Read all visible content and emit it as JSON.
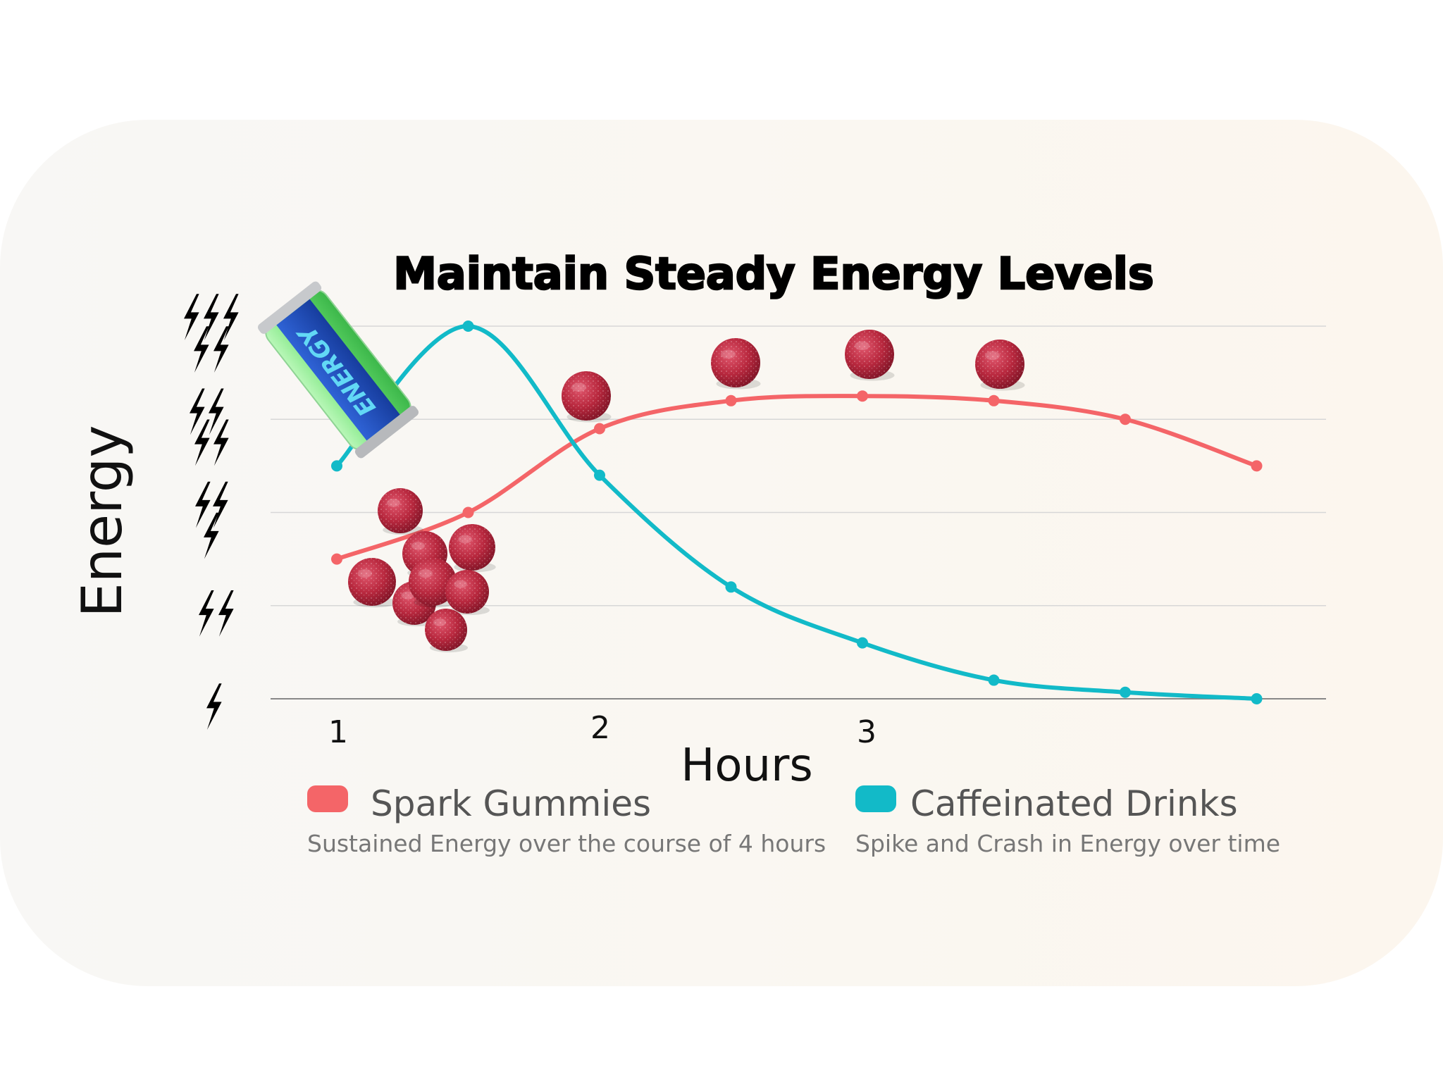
{
  "chart_data": {
    "type": "line",
    "title": "Maintain Steady Energy Levels",
    "xlabel": "Hours",
    "ylabel": "Energy",
    "x_tick_labels": [
      {
        "label": "1",
        "x": 1
      },
      {
        "label": "2",
        "x": 2
      },
      {
        "label": "3",
        "x": 3
      }
    ],
    "y_tick_labels": [
      1,
      2,
      3,
      4,
      5
    ],
    "y_tick_icon": "lightning-bolt-icon",
    "xlim": [
      0.75,
      4.8
    ],
    "ylim": [
      1,
      5
    ],
    "grid": true,
    "series": [
      {
        "name": "Spark Gummies",
        "description": "Sustained Energy over the course of 4 hours",
        "color": "#f46568",
        "x": [
          1,
          1.5,
          2,
          2.5,
          3,
          3.5,
          4,
          4.5
        ],
        "values": [
          2.5,
          3.0,
          3.9,
          4.2,
          4.25,
          4.2,
          4.0,
          3.5
        ]
      },
      {
        "name": "Caffeinated Drinks",
        "description": "Spike and Crash in Energy over time",
        "color": "#12bac8",
        "x": [
          1,
          1.5,
          2,
          2.5,
          3,
          3.5,
          4,
          4.5
        ],
        "values": [
          3.5,
          5.0,
          3.4,
          2.2,
          1.6,
          1.2,
          1.07,
          1.0
        ]
      }
    ],
    "legend_position": "bottom"
  },
  "decorations": {
    "can_label": "ENERGY",
    "can_color": "#6fe27a",
    "gummy_color": "#b5283d",
    "bolt_icon": "lightning-bolt-icon"
  }
}
